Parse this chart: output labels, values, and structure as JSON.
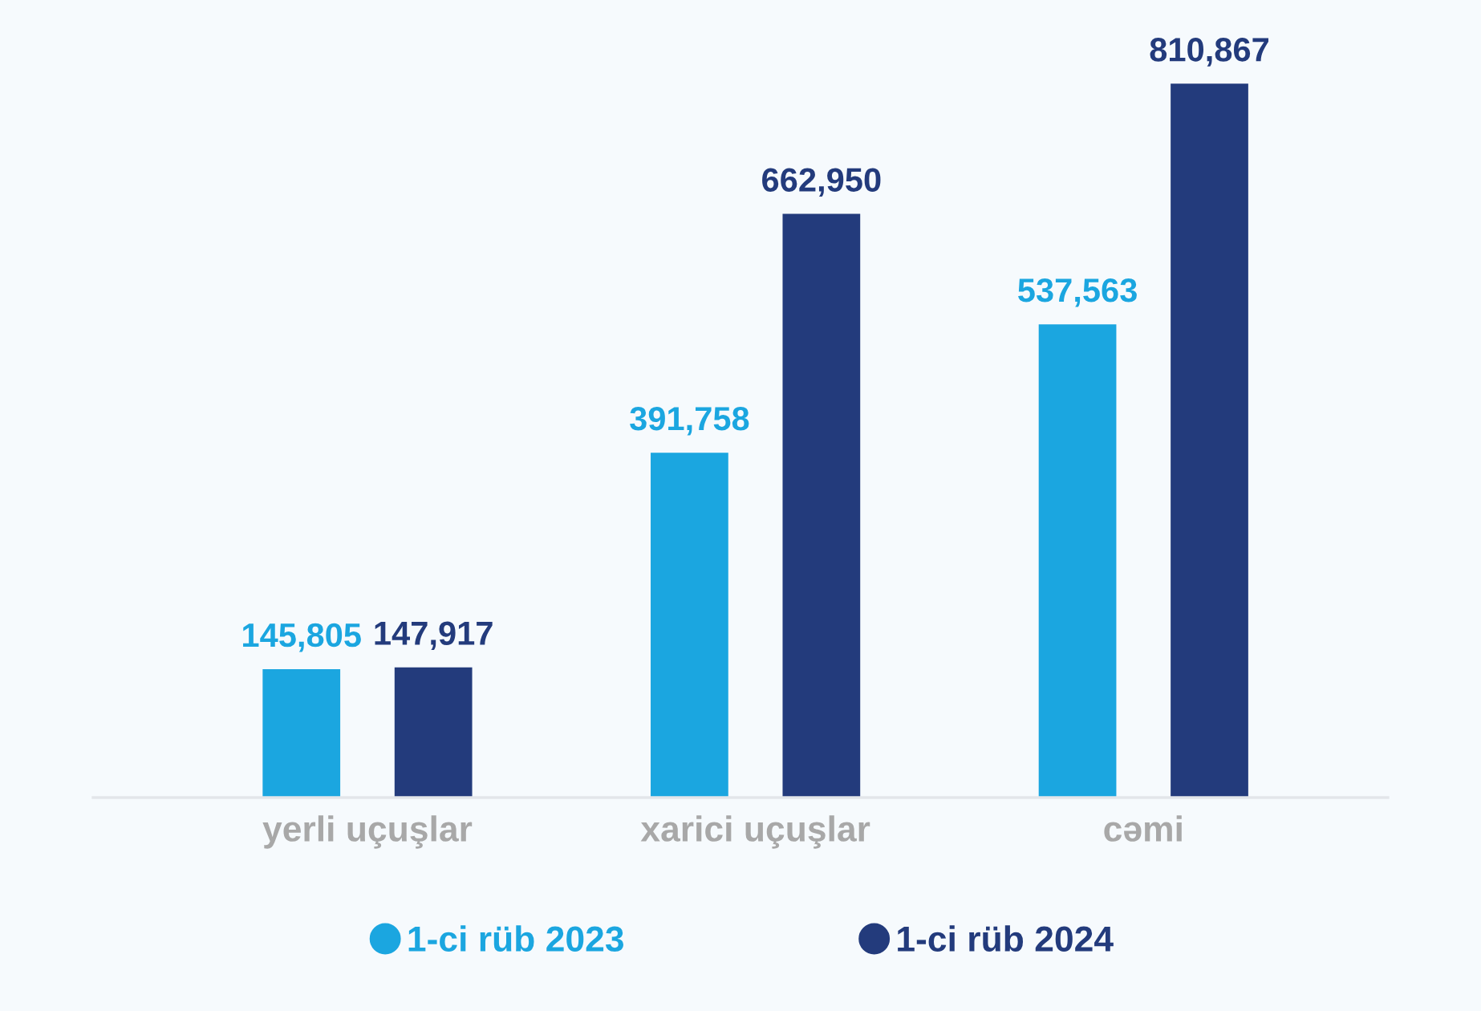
{
  "chart_data": {
    "type": "bar",
    "categories": [
      "yerli uçuşlar",
      "xarici uçuşlar",
      "cəmi"
    ],
    "series": [
      {
        "name": "1-ci rüb 2023",
        "color": "#1ba6e0",
        "values": [
          145805,
          391758,
          537563
        ],
        "value_labels": [
          "145,805",
          "391,758",
          "537,563"
        ]
      },
      {
        "name": "1-ci rüb 2024",
        "color": "#233b7c",
        "values": [
          147917,
          662950,
          810867
        ],
        "value_labels": [
          "147,917",
          "662,950",
          "810,867"
        ]
      }
    ],
    "legend": "bottom",
    "grid": false,
    "tick_labels": "x"
  }
}
